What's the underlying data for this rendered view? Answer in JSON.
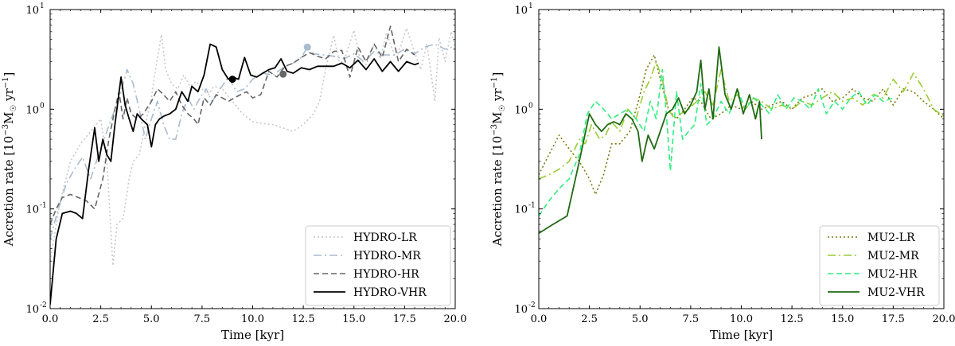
{
  "chart_data": [
    {
      "type": "line",
      "title": "",
      "xlabel": "Time [kyr]",
      "ylabel": "Accretion rate [10⁻³M☉ yr⁻¹]",
      "ylabel_parts": {
        "base": "Accretion rate [10",
        "sup": "−3",
        "mid": "M",
        "sub": "☉",
        "mid2": " yr",
        "sup2": "−1",
        "end": "]"
      },
      "xlim": [
        0,
        20
      ],
      "ylim": [
        0.01,
        10
      ],
      "yscale": "log",
      "xticks": [
        0,
        2.5,
        5,
        7.5,
        10,
        12.5,
        15,
        17.5,
        20
      ],
      "xtick_labels": [
        "0.0",
        "2.5",
        "5.0",
        "7.5",
        "10.0",
        "12.5",
        "15.0",
        "17.5",
        "20.0"
      ],
      "yticks": [
        {
          "value": 0.01,
          "base": "10",
          "exp": "-2"
        },
        {
          "value": 0.1,
          "base": "10",
          "exp": "-1"
        },
        {
          "value": 1,
          "base": "10",
          "exp": "0"
        },
        {
          "value": 10,
          "base": "10",
          "exp": "1"
        }
      ],
      "legend_position": "bottom-right",
      "series": [
        {
          "name": "HYDRO-LR",
          "color": "#c8c8c8",
          "style": "dotted",
          "x": [
            0,
            0.5,
            1,
            1.5,
            2,
            2.5,
            2.8,
            3,
            3.1,
            3.3,
            3.6,
            3.9,
            4.1,
            4.4,
            4.7,
            5,
            5.2,
            5.5,
            5.7,
            6,
            6.3,
            6.6,
            6.9,
            7.2,
            7.5,
            7.8,
            8.1,
            8.5,
            9,
            9.5,
            10,
            10.5,
            11,
            11.5,
            12,
            12.5,
            13,
            13.3,
            13.6,
            14,
            14.3,
            14.6,
            15,
            15.3,
            15.6,
            16,
            16.3,
            16.6,
            17,
            17.3,
            17.6,
            18,
            18.3,
            18.6,
            19,
            19.2,
            19.5,
            19.8,
            20
          ],
          "y": [
            0.03,
            0.12,
            0.3,
            0.45,
            0.6,
            0.8,
            0.3,
            0.06,
            0.027,
            0.07,
            0.08,
            0.2,
            0.3,
            0.35,
            0.7,
            1.3,
            2.5,
            5.6,
            2.5,
            1.8,
            1.6,
            2.2,
            1.7,
            1.9,
            1.6,
            1.4,
            1.7,
            1.6,
            1.2,
            0.9,
            0.75,
            0.72,
            0.7,
            0.65,
            0.6,
            0.7,
            0.9,
            1.2,
            2.5,
            5.5,
            2.8,
            3.5,
            6.2,
            3.2,
            2.8,
            4.5,
            3.2,
            5.8,
            3.5,
            4.2,
            6.5,
            3.7,
            2.5,
            4.5,
            1.2,
            5.2,
            3.0,
            6.0,
            4.0
          ]
        },
        {
          "name": "HYDRO-MR",
          "color": "#a9bccf",
          "style": "dashdot",
          "x": [
            0,
            0.4,
            0.8,
            1.2,
            1.6,
            2,
            2.4,
            2.8,
            3.2,
            3.5,
            3.8,
            4.1,
            4.4,
            4.7,
            5,
            5.3,
            5.6,
            5.9,
            6.2,
            6.5,
            6.8,
            7.1,
            7.4,
            7.7,
            8,
            8.4,
            8.8,
            9.2,
            9.6,
            10,
            10.5,
            11,
            11.5,
            12,
            12.4,
            12.7,
            13,
            13.5,
            14,
            14.5,
            15,
            15.5,
            16,
            16.5,
            17,
            17.5,
            18,
            18.5,
            19,
            19.5,
            20
          ],
          "y": [
            0.05,
            0.1,
            0.18,
            0.25,
            0.33,
            0.2,
            0.35,
            0.6,
            1.0,
            1.5,
            2.5,
            1.8,
            1.0,
            0.5,
            0.8,
            1.2,
            0.7,
            0.5,
            0.5,
            0.9,
            1.3,
            1.0,
            1.3,
            1.6,
            1.2,
            1.6,
            2.1,
            1.5,
            1.6,
            2.0,
            2.3,
            2.2,
            2.6,
            2.9,
            3.3,
            4.2,
            3.6,
            3.5,
            3.4,
            3.2,
            3.6,
            3.0,
            3.8,
            3.5,
            3.5,
            4.0,
            3.6,
            4.2,
            4.5,
            4.0,
            4.3
          ]
        },
        {
          "name": "HYDRO-HR",
          "color": "#666666",
          "style": "dashed",
          "x": [
            0,
            0.3,
            0.6,
            1,
            1.4,
            1.8,
            2.2,
            2.6,
            2.9,
            3.2,
            3.4,
            3.6,
            3.8,
            4.0,
            4.3,
            4.6,
            5,
            5.3,
            5.6,
            5.9,
            6.2,
            6.5,
            6.8,
            7.1,
            7.3,
            7.6,
            7.9,
            8.2,
            8.5,
            8.8,
            9.1,
            9.4,
            9.7,
            10,
            10.4,
            10.8,
            11.2,
            11.6,
            12,
            12.4,
            12.8,
            13.2,
            13.6,
            14,
            14.4,
            14.8,
            15.2,
            15.6,
            16,
            16.4,
            16.8,
            17.2,
            17.6,
            18
          ],
          "y": [
            0.07,
            0.1,
            0.13,
            0.14,
            0.13,
            0.12,
            0.1,
            0.2,
            0.5,
            1.0,
            1.5,
            0.8,
            1.3,
            0.9,
            0.8,
            0.9,
            1.2,
            1.6,
            1.4,
            1.2,
            1.5,
            1.1,
            0.9,
            0.8,
            0.7,
            1.3,
            1.1,
            1.4,
            1.3,
            1.2,
            1.3,
            1.4,
            1.5,
            1.3,
            1.4,
            2.4,
            2.1,
            2.7,
            2.9,
            3.3,
            3.7,
            3.4,
            3.2,
            3.8,
            3.9,
            2.1,
            4.2,
            3.0,
            4.5,
            3.3,
            6.8,
            3.0,
            4.0,
            3.5
          ]
        },
        {
          "name": "HYDRO-VHR",
          "color": "#000000",
          "style": "solid",
          "x": [
            0,
            0.3,
            0.6,
            1.0,
            1.3,
            1.6,
            1.9,
            2.2,
            2.4,
            2.6,
            2.8,
            3.0,
            3.2,
            3.5,
            3.7,
            3.9,
            4.1,
            4.3,
            4.5,
            4.8,
            5.0,
            5.2,
            5.4,
            5.6,
            5.9,
            6.2,
            6.5,
            6.8,
            7.0,
            7.3,
            7.6,
            7.9,
            8.2,
            8.5,
            8.8,
            9.0,
            9.3,
            9.6,
            9.9,
            10.2,
            10.5,
            10.8,
            11.1,
            11.4,
            11.7,
            12,
            12.4,
            12.8,
            13.2,
            13.6,
            14,
            14.4,
            14.8,
            15.2,
            15.6,
            16,
            16.4,
            16.8,
            17.2,
            17.6,
            18,
            18.2
          ],
          "y": [
            0.011,
            0.05,
            0.09,
            0.095,
            0.09,
            0.08,
            0.25,
            0.65,
            0.3,
            0.5,
            0.35,
            0.3,
            0.7,
            2.1,
            1.1,
            0.8,
            0.6,
            0.9,
            0.8,
            0.7,
            0.42,
            0.7,
            0.8,
            0.85,
            0.9,
            1.0,
            1.5,
            1.2,
            1.7,
            1.5,
            2.2,
            4.5,
            4.2,
            2.5,
            2.0,
            2.1,
            2.0,
            3.3,
            2.2,
            2.1,
            2.3,
            2.5,
            2.6,
            3.2,
            2.4,
            2.3,
            2.6,
            2.5,
            2.7,
            2.7,
            2.7,
            2.9,
            2.6,
            3.1,
            2.5,
            3.2,
            2.4,
            3.0,
            2.4,
            3.0,
            2.8,
            2.9
          ]
        }
      ],
      "markers": [
        {
          "x": 9.0,
          "y": 2.0,
          "color": "#000000"
        },
        {
          "x": 11.5,
          "y": 2.25,
          "color": "#666666"
        },
        {
          "x": 12.7,
          "y": 4.2,
          "color": "#a9bccf"
        }
      ]
    },
    {
      "type": "line",
      "title": "",
      "xlabel": "Time [kyr]",
      "ylabel": "Accretion rate [10⁻³M☉ yr⁻¹]",
      "ylabel_parts": {
        "base": "Accretion rate [10",
        "sup": "−3",
        "mid": "M",
        "sub": "☉",
        "mid2": " yr",
        "sup2": "−1",
        "end": "]"
      },
      "xlim": [
        0,
        20
      ],
      "ylim": [
        0.01,
        10
      ],
      "yscale": "log",
      "xticks": [
        0,
        2.5,
        5,
        7.5,
        10,
        12.5,
        15,
        17.5,
        20
      ],
      "xtick_labels": [
        "0.0",
        "2.5",
        "5.0",
        "7.5",
        "10.0",
        "12.5",
        "15.0",
        "17.5",
        "20.0"
      ],
      "yticks": [
        {
          "value": 0.01,
          "base": "10",
          "exp": "-2"
        },
        {
          "value": 0.1,
          "base": "10",
          "exp": "-1"
        },
        {
          "value": 1,
          "base": "10",
          "exp": "0"
        },
        {
          "value": 10,
          "base": "10",
          "exp": "1"
        }
      ],
      "legend_position": "bottom-right",
      "series": [
        {
          "name": "MU2-LR",
          "color": "#7a7a10",
          "style": "dotted",
          "x": [
            0,
            0.5,
            1.0,
            1.5,
            2.0,
            2.5,
            2.8,
            3.2,
            3.6,
            4.0,
            4.5,
            5.0,
            5.3,
            5.7,
            6.0,
            6.4,
            6.8,
            7.2,
            7.6,
            8.0,
            8.5,
            9.0,
            9.5,
            10.0,
            10.5,
            11.0,
            11.5,
            12.0,
            12.5,
            13.0,
            13.5,
            14.0,
            14.5,
            15.0,
            15.5,
            16.0,
            16.5,
            17.0,
            17.5,
            18.0,
            18.5,
            19.0,
            19.5,
            20.0
          ],
          "y": [
            0.22,
            0.35,
            0.55,
            0.4,
            0.3,
            0.2,
            0.14,
            0.22,
            0.45,
            0.45,
            0.6,
            1.4,
            2.5,
            3.5,
            2.0,
            1.0,
            0.8,
            1.0,
            1.3,
            1.2,
            0.8,
            0.9,
            1.1,
            1.0,
            1.2,
            1.0,
            1.1,
            1.2,
            1.0,
            1.3,
            1.4,
            1.6,
            1.2,
            1.3,
            1.6,
            1.3,
            1.2,
            1.6,
            1.1,
            1.6,
            1.5,
            1.2,
            1.0,
            0.8
          ]
        },
        {
          "name": "MU2-MR",
          "color": "#9acd32",
          "style": "dashdot",
          "x": [
            0,
            0.5,
            1.0,
            1.5,
            2.0,
            2.3,
            2.6,
            3.0,
            3.3,
            3.6,
            4.0,
            4.4,
            4.8,
            5.2,
            5.5,
            5.8,
            6.1,
            6.4,
            6.7,
            7.0,
            7.4,
            7.8,
            8.2,
            8.6,
            9.0,
            9.4,
            9.8,
            10.2,
            10.6,
            11.0,
            11.5,
            12.0,
            12.5,
            13.0,
            13.5,
            14.0,
            14.5,
            15.0,
            15.5,
            16.0,
            16.5,
            17.0,
            17.5,
            18.0,
            18.5,
            19.0,
            19.5,
            20.0
          ],
          "y": [
            0.2,
            0.22,
            0.25,
            0.3,
            0.5,
            0.45,
            0.7,
            0.5,
            0.55,
            0.75,
            0.6,
            1.0,
            0.8,
            1.5,
            2.0,
            3.0,
            2.0,
            1.0,
            0.8,
            0.9,
            1.0,
            1.2,
            1.5,
            1.1,
            2.5,
            1.2,
            1.4,
            1.0,
            1.3,
            1.2,
            1.0,
            1.1,
            1.0,
            1.2,
            1.1,
            1.3,
            1.5,
            1.2,
            1.3,
            1.1,
            1.4,
            1.3,
            2.0,
            1.5,
            2.3,
            1.6,
            1.0,
            0.85
          ]
        },
        {
          "name": "MU2-HR",
          "color": "#30ee80",
          "style": "dashed",
          "x": [
            0,
            0.5,
            1.0,
            1.5,
            2.0,
            2.4,
            2.8,
            3.2,
            3.6,
            4.0,
            4.4,
            4.8,
            5.2,
            5.5,
            5.8,
            6.1,
            6.3,
            6.5,
            6.8,
            7.1,
            7.4,
            7.7,
            8.0,
            8.3,
            8.6,
            9.0,
            9.4,
            9.8,
            10.2,
            10.6,
            11.0,
            11.4,
            11.8,
            12.2,
            12.6,
            13.0,
            13.4,
            13.8,
            14.2,
            14.6,
            15.0,
            15.4,
            15.8,
            16.2,
            16.6,
            17.0,
            17.5
          ],
          "y": [
            0.085,
            0.12,
            0.16,
            0.2,
            0.35,
            0.9,
            1.2,
            1.0,
            0.8,
            0.9,
            1.0,
            0.8,
            0.6,
            1.2,
            0.8,
            2.5,
            0.9,
            0.24,
            1.5,
            0.5,
            0.6,
            0.7,
            1.8,
            0.7,
            0.8,
            1.2,
            0.9,
            1.6,
            1.0,
            1.3,
            1.1,
            0.9,
            1.4,
            1.0,
            1.3,
            1.2,
            1.0,
            1.6,
            0.9,
            1.2,
            1.0,
            1.3,
            1.5,
            1.1,
            1.4,
            1.2,
            1.3
          ]
        },
        {
          "name": "MU2-VHR",
          "color": "#1f6a12",
          "style": "solid",
          "x": [
            0,
            0.7,
            1.4,
            2.0,
            2.5,
            2.8,
            3.1,
            3.4,
            3.7,
            4.0,
            4.3,
            4.6,
            4.9,
            5.1,
            5.4,
            5.7,
            6.0,
            6.3,
            6.6,
            6.9,
            7.2,
            7.5,
            7.8,
            8.0,
            8.2,
            8.4,
            8.6,
            8.9,
            9.2,
            9.5,
            9.8,
            10.1,
            10.4,
            10.7,
            10.9,
            11.0
          ],
          "y": [
            0.057,
            0.07,
            0.085,
            0.3,
            0.9,
            0.7,
            0.6,
            0.7,
            0.75,
            0.7,
            0.9,
            0.8,
            0.6,
            0.3,
            0.55,
            0.4,
            0.6,
            0.9,
            1.0,
            1.3,
            0.9,
            1.1,
            1.5,
            3.1,
            1.0,
            1.6,
            0.8,
            4.2,
            1.4,
            1.0,
            1.6,
            0.9,
            1.4,
            0.8,
            1.2,
            0.5
          ]
        }
      ],
      "markers": []
    }
  ]
}
